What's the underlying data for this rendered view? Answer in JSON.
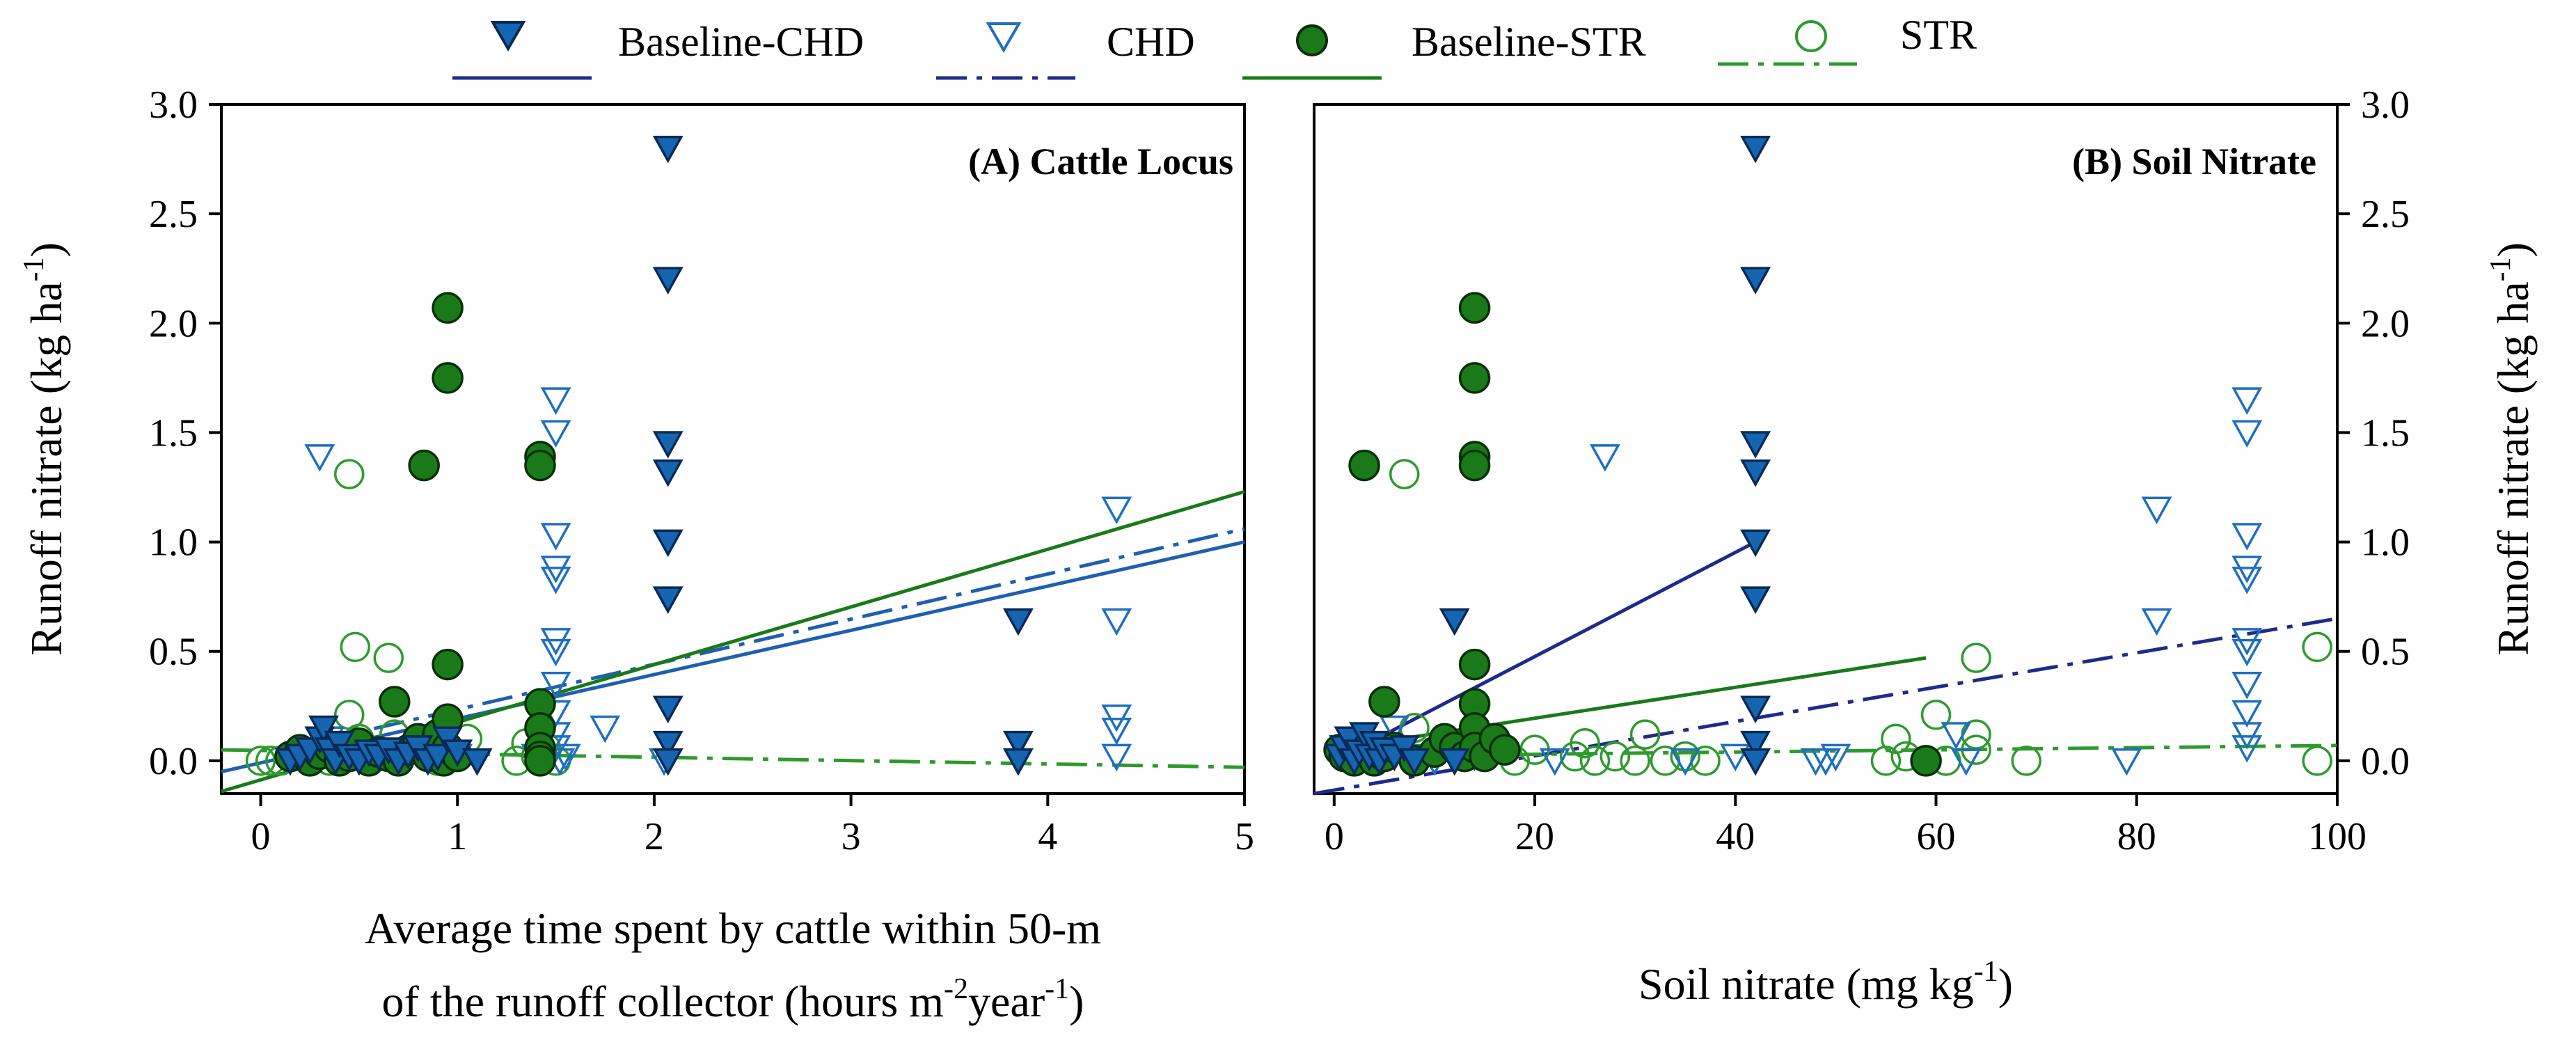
{
  "colors": {
    "baseline_chd": "#1565b0",
    "baseline_chd_line": "#1f2a8a",
    "chd": "#1e6fc0",
    "baseline_str": "#1a7a1a",
    "str": "#2e9a2e",
    "axis": "#000000"
  },
  "legend": [
    {
      "key": "baseline_chd",
      "label": "Baseline-CHD",
      "marker": "triangle-down-filled",
      "line": "solid"
    },
    {
      "key": "chd",
      "label": "CHD",
      "marker": "triangle-down-open",
      "line": "dash-dot"
    },
    {
      "key": "baseline_str",
      "label": "Baseline-STR",
      "marker": "circle-filled",
      "line": "solid"
    },
    {
      "key": "str",
      "label": "STR",
      "marker": "circle-open",
      "line": "dash-dot"
    }
  ],
  "chart_data": [
    {
      "type": "scatter",
      "panel": "A",
      "title": "(A) Cattle Locus",
      "xlabel_line1": "Average time spent by cattle within 50-m",
      "xlabel_line2": "of the runoff collector (hours m",
      "xlabel_sup1": "-2",
      "xlabel_mid": "year",
      "xlabel_sup2": "-1",
      "xlabel_end": ")",
      "ylabel": "Runoff nitrate (kg ha",
      "ylabel_sup": "-1",
      "ylabel_end": ")",
      "xlim": [
        -0.2,
        5
      ],
      "ylim": [
        -0.15,
        3.0
      ],
      "xticks": [
        0,
        1,
        2,
        3,
        4,
        5
      ],
      "xtick_labels": [
        "0",
        "1",
        "2",
        "3",
        "4",
        "5"
      ],
      "yticks": [
        0.0,
        0.5,
        1.0,
        1.5,
        2.0,
        2.5,
        3.0
      ],
      "ytick_labels": [
        "0.0",
        "0.5",
        "1.0",
        "1.5",
        "2.0",
        "2.5",
        "3.0"
      ],
      "series": [
        {
          "key": "baseline_chd",
          "name": "Baseline-CHD",
          "x": [
            0.15,
            0.2,
            0.25,
            0.3,
            0.32,
            0.35,
            0.38,
            0.4,
            0.45,
            0.5,
            0.55,
            0.6,
            0.65,
            0.7,
            0.75,
            0.8,
            0.85,
            0.9,
            0.95,
            1.0,
            1.1,
            2.07,
            2.07,
            2.07,
            2.07,
            2.07,
            2.07,
            2.07,
            2.07,
            2.07,
            3.85,
            3.85,
            3.85
          ],
          "y": [
            0.0,
            0.02,
            0.05,
            0.1,
            0.15,
            0.05,
            0.0,
            0.08,
            0.02,
            0.0,
            0.04,
            0.02,
            0.05,
            0.0,
            0.03,
            0.06,
            0.0,
            0.02,
            0.1,
            0.04,
            0.0,
            2.8,
            2.2,
            1.45,
            1.32,
            1.0,
            0.74,
            0.24,
            0.08,
            0.0,
            0.64,
            0.08,
            0.0
          ]
        },
        {
          "key": "chd",
          "name": "CHD",
          "x": [
            0.3,
            0.35,
            0.45,
            0.5,
            0.7,
            0.9,
            1.0,
            1.1,
            1.4,
            1.5,
            1.5,
            1.5,
            1.5,
            1.5,
            1.5,
            1.5,
            1.5,
            1.5,
            1.5,
            1.5,
            1.52,
            1.55,
            1.75,
            2.05,
            4.35,
            4.35,
            4.35,
            4.35,
            4.35
          ],
          "y": [
            1.39,
            0.1,
            0.02,
            0.05,
            0.0,
            0.05,
            0.02,
            0.0,
            0.02,
            1.65,
            1.5,
            1.03,
            0.88,
            0.83,
            0.55,
            0.5,
            0.35,
            0.22,
            0.12,
            0.06,
            0.0,
            0.02,
            0.15,
            0.0,
            1.15,
            0.64,
            0.2,
            0.14,
            0.02
          ]
        },
        {
          "key": "baseline_str",
          "name": "Baseline-STR",
          "x": [
            0.15,
            0.2,
            0.25,
            0.3,
            0.35,
            0.4,
            0.45,
            0.5,
            0.55,
            0.6,
            0.65,
            0.68,
            0.7,
            0.75,
            0.8,
            0.83,
            0.85,
            0.88,
            0.9,
            0.93,
            0.95,
            0.95,
            0.95,
            0.95,
            0.95,
            1.0,
            1.42,
            1.42,
            1.42,
            1.42,
            1.42,
            1.42,
            1.42
          ],
          "y": [
            0.02,
            0.05,
            0.0,
            0.03,
            0.06,
            0.0,
            0.02,
            0.08,
            0.0,
            0.04,
            0.02,
            0.27,
            0.0,
            0.05,
            0.1,
            1.35,
            0.02,
            0.06,
            0.12,
            0.0,
            2.07,
            1.75,
            0.44,
            0.19,
            0.06,
            0.02,
            1.39,
            1.35,
            0.26,
            0.15,
            0.06,
            0.02,
            0.0
          ]
        },
        {
          "key": "str",
          "name": "STR",
          "x": [
            0.0,
            0.05,
            0.1,
            0.15,
            0.25,
            0.3,
            0.35,
            0.45,
            0.45,
            0.48,
            0.5,
            0.55,
            0.65,
            0.68,
            0.7,
            0.8,
            0.9,
            1.0,
            1.05,
            1.3,
            1.35,
            1.4,
            1.45,
            1.5
          ],
          "y": [
            0.0,
            0.0,
            0.0,
            0.02,
            0.0,
            0.05,
            0.0,
            1.31,
            0.21,
            0.52,
            0.1,
            0.05,
            0.47,
            0.12,
            0.02,
            0.05,
            0.0,
            0.02,
            0.1,
            0.0,
            0.08,
            0.02,
            0.06,
            0.0
          ]
        }
      ],
      "fits": [
        {
          "key": "baseline_chd",
          "style": "solid",
          "x": [
            -0.2,
            5
          ],
          "y": [
            -0.05,
            1.0
          ]
        },
        {
          "key": "chd",
          "style": "dash-dot",
          "x": [
            0.3,
            5
          ],
          "y": [
            0.09,
            1.06
          ]
        },
        {
          "key": "baseline_str",
          "style": "solid",
          "x": [
            -0.2,
            5
          ],
          "y": [
            -0.14,
            1.23
          ]
        },
        {
          "key": "str",
          "style": "dash-dot",
          "x": [
            -0.2,
            5
          ],
          "y": [
            0.05,
            -0.03
          ]
        }
      ]
    },
    {
      "type": "scatter",
      "panel": "B",
      "title": "(B) Soil Nitrate",
      "xlabel": "Soil nitrate (mg kg",
      "xlabel_sup": "-1",
      "xlabel_end": ")",
      "ylabel": "Runoff nitrate (kg ha",
      "ylabel_sup": "-1",
      "ylabel_end": ")",
      "xlim": [
        -2,
        100
      ],
      "ylim": [
        -0.15,
        3.0
      ],
      "xticks": [
        0,
        20,
        40,
        60,
        80,
        100
      ],
      "xtick_labels": [
        "0",
        "20",
        "40",
        "60",
        "80",
        "100"
      ],
      "yticks": [
        0.0,
        0.5,
        1.0,
        1.5,
        2.0,
        2.5,
        3.0
      ],
      "ytick_labels": [
        "0.0",
        "0.5",
        "1.0",
        "1.5",
        "2.0",
        "2.5",
        "3.0"
      ],
      "series": [
        {
          "key": "baseline_chd",
          "name": "Baseline-CHD",
          "x": [
            0.5,
            1,
            1.5,
            2,
            2.5,
            3,
            3.5,
            4,
            4.5,
            5,
            6,
            7,
            8,
            12,
            12,
            42,
            42,
            42,
            42,
            42,
            42,
            42,
            42,
            42
          ],
          "y": [
            0.02,
            0.06,
            0.1,
            0.0,
            0.04,
            0.12,
            0.02,
            0.08,
            0.0,
            0.05,
            0.02,
            0.06,
            0.0,
            0.64,
            0.0,
            2.8,
            2.2,
            1.45,
            1.32,
            1.0,
            0.74,
            0.24,
            0.08,
            0.0
          ]
        },
        {
          "key": "chd",
          "name": "CHD",
          "x": [
            1,
            2,
            3,
            4,
            6,
            8,
            10,
            14,
            22,
            27,
            35,
            40,
            48,
            49,
            50,
            62,
            63,
            79,
            82,
            82,
            91,
            91,
            91,
            91,
            91,
            91,
            91,
            91,
            91,
            91,
            91
          ],
          "y": [
            0.02,
            0.1,
            0.05,
            0.0,
            0.15,
            0.02,
            0.0,
            0.02,
            0.0,
            1.39,
            0.0,
            0.02,
            0.0,
            0.0,
            0.02,
            0.12,
            0.0,
            0.0,
            1.15,
            0.64,
            1.65,
            1.5,
            1.03,
            0.88,
            0.83,
            0.55,
            0.5,
            0.35,
            0.22,
            0.12,
            0.06
          ]
        },
        {
          "key": "baseline_str",
          "name": "Baseline-STR",
          "x": [
            0.5,
            1,
            2,
            3,
            3,
            4,
            5,
            5,
            6,
            8,
            10,
            11,
            12,
            13,
            14,
            14,
            14,
            14,
            14,
            14,
            14,
            14,
            15,
            16,
            17,
            59
          ],
          "y": [
            0.05,
            0.02,
            0.0,
            1.35,
            0.06,
            0.0,
            0.27,
            0.02,
            0.06,
            0.0,
            0.04,
            0.1,
            0.06,
            0.02,
            2.07,
            1.75,
            1.39,
            1.35,
            0.44,
            0.26,
            0.15,
            0.06,
            0.02,
            0.1,
            0.05,
            0.0
          ]
        },
        {
          "key": "str",
          "name": "STR",
          "x": [
            7,
            8,
            15,
            18,
            20,
            24,
            25,
            26,
            28,
            30,
            31,
            33,
            35,
            37,
            55,
            56,
            57,
            60,
            61,
            64,
            64,
            64,
            69,
            98,
            98
          ],
          "y": [
            1.31,
            0.15,
            0.02,
            0.0,
            0.05,
            0.02,
            0.08,
            0.0,
            0.02,
            0.0,
            0.12,
            0.0,
            0.02,
            0.0,
            0.0,
            0.1,
            0.02,
            0.21,
            0.0,
            0.47,
            0.12,
            0.05,
            0.0,
            0.52,
            0.0
          ]
        }
      ],
      "fits": [
        {
          "key": "baseline_chd",
          "style": "solid",
          "x": [
            0,
            42
          ],
          "y": [
            0.0,
            1.0
          ]
        },
        {
          "key": "chd",
          "style": "dash-dot",
          "x": [
            -2,
            100
          ],
          "y": [
            -0.15,
            0.65
          ]
        },
        {
          "key": "baseline_str",
          "style": "solid",
          "x": [
            1,
            59
          ],
          "y": [
            0.06,
            0.47
          ]
        },
        {
          "key": "str",
          "style": "dash-dot",
          "x": [
            1,
            100
          ],
          "y": [
            0.02,
            0.07
          ]
        }
      ]
    }
  ]
}
